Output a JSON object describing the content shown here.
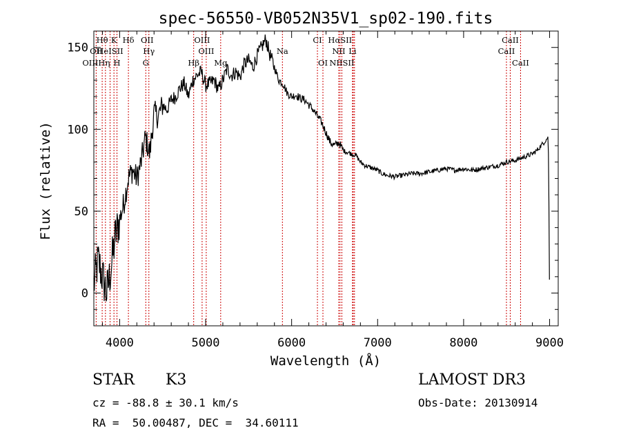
{
  "chart_data": {
    "type": "line",
    "title": "spec-56550-VB052N35V1_sp02-190.fits",
    "xlabel": "Wavelength (Å)",
    "ylabel": "Flux (relative)",
    "xlim": [
      3700,
      9100
    ],
    "ylim": [
      -20,
      160
    ],
    "xticks": [
      4000,
      5000,
      6000,
      7000,
      8000,
      9000
    ],
    "yticks": [
      0,
      50,
      100,
      150
    ],
    "grid": false,
    "spectrum": {
      "wavelength": [
        3700,
        3750,
        3800,
        3850,
        3900,
        3950,
        4000,
        4050,
        4100,
        4150,
        4200,
        4250,
        4300,
        4350,
        4400,
        4450,
        4500,
        4550,
        4600,
        4650,
        4700,
        4750,
        4800,
        4850,
        4900,
        4950,
        5000,
        5050,
        5100,
        5150,
        5200,
        5250,
        5300,
        5350,
        5400,
        5450,
        5500,
        5550,
        5600,
        5650,
        5700,
        5750,
        5800,
        5850,
        5900,
        5950,
        6000,
        6050,
        6100,
        6150,
        6200,
        6250,
        6300,
        6350,
        6400,
        6450,
        6500,
        6550,
        6600,
        6650,
        6700,
        6750,
        6800,
        6850,
        6900,
        6950,
        7000,
        7050,
        7100,
        7200,
        7300,
        7400,
        7500,
        7600,
        7700,
        7800,
        7900,
        8000,
        8100,
        8200,
        8300,
        8400,
        8500,
        8600,
        8700,
        8800,
        8850,
        8900,
        8950,
        8980,
        8990,
        8995,
        9000
      ],
      "flux": [
        5,
        20,
        10,
        0,
        15,
        35,
        45,
        55,
        70,
        75,
        70,
        80,
        95,
        85,
        110,
        108,
        115,
        112,
        118,
        120,
        125,
        128,
        120,
        130,
        133,
        135,
        127,
        128,
        130,
        124,
        130,
        137,
        133,
        135,
        132,
        140,
        142,
        138,
        145,
        150,
        155,
        145,
        138,
        130,
        128,
        122,
        120,
        121,
        119,
        118,
        115,
        112,
        108,
        104,
        98,
        92,
        90,
        92,
        87,
        86,
        85,
        84,
        80,
        78,
        77,
        76,
        75,
        73,
        72,
        71,
        72,
        73,
        73,
        74,
        75,
        76,
        75,
        76,
        75,
        76,
        77,
        78,
        80,
        81,
        83,
        85,
        87,
        90,
        93,
        95,
        80,
        20,
        0
      ]
    },
    "lines_top": [
      {
        "label": "Hθ",
        "wl": 3797
      },
      {
        "label": "K",
        "wl": 3934
      },
      {
        "label": "Hδ",
        "wl": 4102
      },
      {
        "label": "OII",
        "wl": 4320
      },
      {
        "label": "OIII",
        "wl": 4959
      },
      {
        "label": "CI",
        "wl": 6300
      },
      {
        "label": "HαSII",
        "wl": 6563
      },
      {
        "label": "CaII",
        "wl": 8542
      }
    ],
    "lines_mid": [
      {
        "label": "OII",
        "wl": 3727
      },
      {
        "label": "HeISII",
        "wl": 3889
      },
      {
        "label": "Hγ",
        "wl": 4340
      },
      {
        "label": "OIII",
        "wl": 5007
      },
      {
        "label": "Na",
        "wl": 5893
      },
      {
        "label": "NII",
        "wl": 6548
      },
      {
        "label": "Li",
        "wl": 6708
      },
      {
        "label": "CaII",
        "wl": 8498
      }
    ],
    "lines_low": [
      {
        "label": "OIIIHη",
        "wl": 3727
      },
      {
        "label": "H",
        "wl": 3969
      },
      {
        "label": "G",
        "wl": 4304
      },
      {
        "label": "Hβ",
        "wl": 4861
      },
      {
        "label": "Mg",
        "wl": 5175
      },
      {
        "label": "OI",
        "wl": 6364
      },
      {
        "label": "NIISII",
        "wl": 6584
      },
      {
        "label": "CaII",
        "wl": 8662
      }
    ],
    "line_markers": [
      3727,
      3797,
      3835,
      3889,
      3934,
      3969,
      4102,
      4304,
      4340,
      4861,
      4959,
      5007,
      5175,
      5893,
      6300,
      6364,
      6548,
      6563,
      6584,
      6708,
      6716,
      6731,
      8498,
      8542,
      8662
    ],
    "line_marker_color": "#cc0000"
  },
  "info": {
    "class": "STAR",
    "subclass": "K3",
    "survey": "LAMOST DR3",
    "cz": "cz = -88.8 ± 30.1 km/s",
    "obsdate": "Obs-Date: 20130914",
    "radec": "RA =  50.00487, DEC =  34.60111"
  }
}
